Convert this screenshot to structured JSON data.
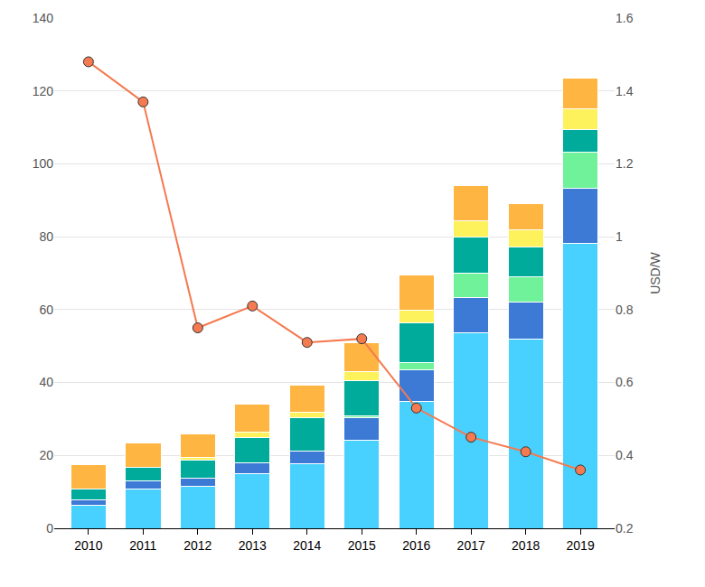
{
  "chart_data": {
    "type": "bar",
    "stacked": true,
    "grid": true,
    "categories": [
      "2010",
      "2011",
      "2012",
      "2013",
      "2014",
      "2015",
      "2016",
      "2017",
      "2018",
      "2019"
    ],
    "ylim": [
      0,
      140
    ],
    "yticks": [
      0,
      20,
      40,
      60,
      80,
      100,
      120,
      140
    ],
    "y2lim": [
      0.2,
      1.6
    ],
    "y2ticks": [
      0.2,
      0.4,
      0.6,
      0.8,
      1,
      1.2,
      1.4,
      1.6
    ],
    "y2_label": "USD/W",
    "series": [
      {
        "type": "bar",
        "color": "#48d1ff",
        "values": [
          6.3,
          10.7,
          11.6,
          15.1,
          17.7,
          24.1,
          34.9,
          53.7,
          51.9,
          78.1
        ]
      },
      {
        "type": "bar",
        "color": "#3d7ad6",
        "values": [
          1.6,
          2.2,
          2.1,
          2.9,
          3.5,
          6.3,
          8.6,
          9.5,
          10.1,
          15.2
        ]
      },
      {
        "type": "bar",
        "color": "#6ff29a",
        "values": [
          0,
          0,
          0,
          0,
          0,
          0.5,
          2.0,
          6.8,
          7.1,
          9.9
        ]
      },
      {
        "type": "bar",
        "color": "#00ab9b",
        "values": [
          2.9,
          3.9,
          4.9,
          7.0,
          9.2,
          9.7,
          10.9,
          9.9,
          8.2,
          6.3
        ]
      },
      {
        "type": "bar",
        "color": "#fdf25c",
        "values": [
          0,
          0,
          0.9,
          1.3,
          1.5,
          2.4,
          3.5,
          4.5,
          4.7,
          5.5
        ]
      },
      {
        "type": "bar",
        "color": "#ffb541",
        "values": [
          6.7,
          6.7,
          6.5,
          7.7,
          7.4,
          7.9,
          9.6,
          9.6,
          7.2,
          8.5
        ]
      },
      {
        "type": "line",
        "axis": "y2",
        "color": "#f47a50",
        "marker": "circle",
        "values": [
          1.48,
          1.37,
          0.75,
          0.81,
          0.71,
          0.72,
          0.53,
          0.45,
          0.41,
          0.36
        ]
      }
    ]
  }
}
